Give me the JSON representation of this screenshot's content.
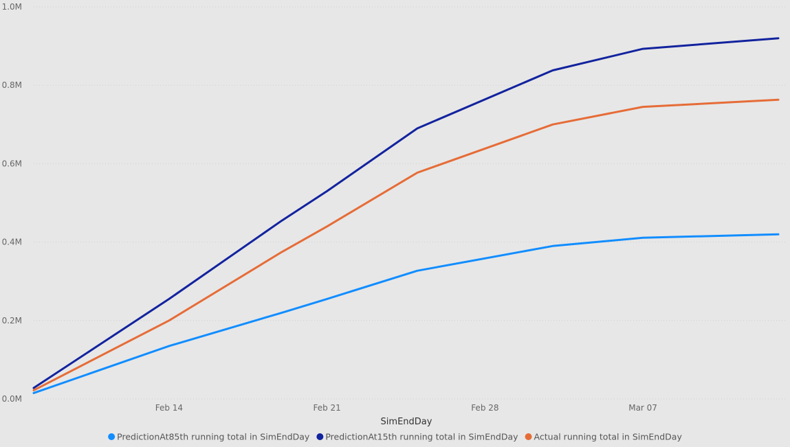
{
  "chart_data": {
    "type": "line",
    "xlabel": "SimEndDay",
    "ylabel": "",
    "x_ticks": [
      "Feb 14",
      "Feb 21",
      "Feb 28",
      "Mar 07"
    ],
    "y_ticks": [
      "0.0M",
      "0.2M",
      "0.4M",
      "0.6M",
      "0.8M",
      "1.0M"
    ],
    "ylim": [
      0,
      1000000
    ],
    "xlim": [
      "2021-02-08",
      "2021-03-13"
    ],
    "grid": true,
    "legend_position": "bottom",
    "x": [
      "2021-02-08",
      "2021-02-14",
      "2021-02-19",
      "2021-02-21",
      "2021-02-25",
      "2021-03-03",
      "2021-03-07",
      "2021-03-13"
    ],
    "series": [
      {
        "name": "PredictionAt85th running total in SimEndDay",
        "color": "#118dff",
        "values": [
          15000,
          135000,
          220000,
          255000,
          327000,
          390000,
          411000,
          420000
        ]
      },
      {
        "name": "PredictionAt15th running total in SimEndDay",
        "color": "#12239e",
        "values": [
          28000,
          255000,
          455000,
          530000,
          690000,
          838000,
          893000,
          920000
        ]
      },
      {
        "name": "Actual running total in SimEndDay",
        "color": "#e66c37",
        "values": [
          22000,
          200000,
          375000,
          440000,
          577000,
          700000,
          745000,
          763000
        ]
      }
    ]
  }
}
